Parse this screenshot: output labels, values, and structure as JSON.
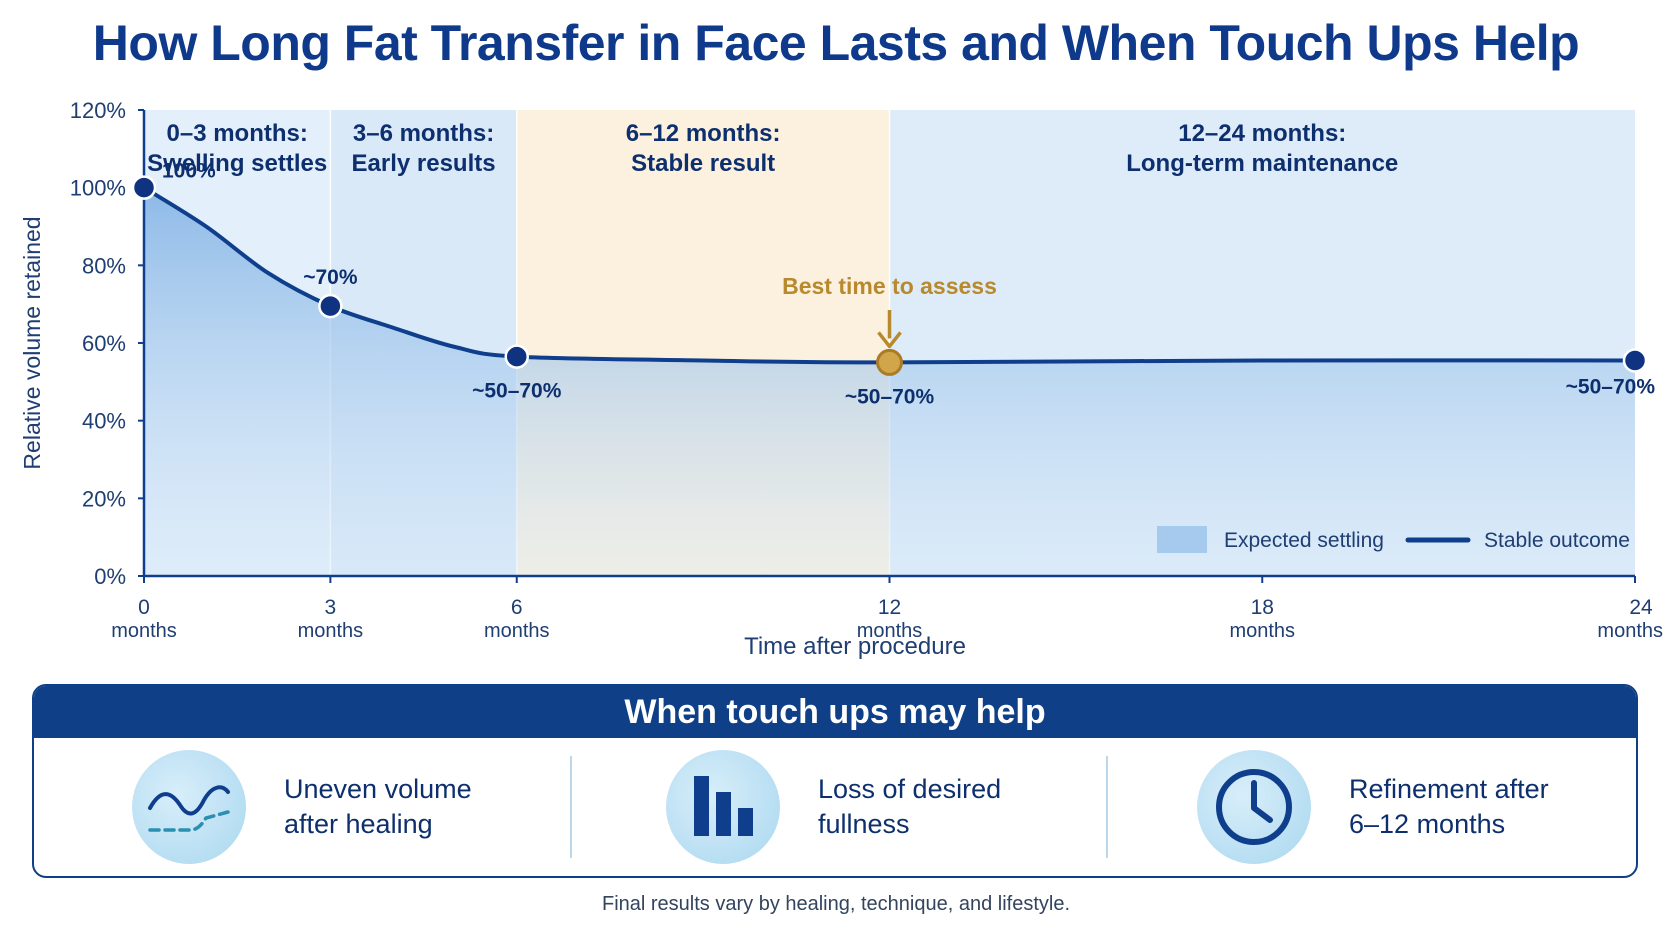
{
  "title": "How Long Fat Transfer in Face Lasts and When Touch Ups Help",
  "chart_data": {
    "type": "area",
    "ylabel": "Relative volume retained",
    "xlabel": "Time after procedure",
    "ylim": [
      0,
      120
    ],
    "xlim": [
      0,
      24
    ],
    "y_ticks": [
      {
        "value": 0,
        "label": "0%"
      },
      {
        "value": 20,
        "label": "20%"
      },
      {
        "value": 40,
        "label": "40%"
      },
      {
        "value": 60,
        "label": "60%"
      },
      {
        "value": 80,
        "label": "80%"
      },
      {
        "value": 100,
        "label": "100%"
      },
      {
        "value": 120,
        "label": "120%"
      }
    ],
    "x_ticks": [
      {
        "value": 0,
        "label": "0",
        "unit": "months"
      },
      {
        "value": 3,
        "label": "3",
        "unit": "months"
      },
      {
        "value": 6,
        "label": "6",
        "unit": "months"
      },
      {
        "value": 12,
        "label": "12",
        "unit": "months"
      },
      {
        "value": 18,
        "label": "18",
        "unit": "months"
      },
      {
        "value": 24,
        "label": "24",
        "unit": "months"
      }
    ],
    "phases": [
      {
        "start": 0,
        "end": 3,
        "line1": "0–3 months:",
        "line2": "Swelling settles",
        "color": "#e3effa"
      },
      {
        "start": 3,
        "end": 6,
        "line1": "3–6 months:",
        "line2": "Early results",
        "color": "#d9e9f8"
      },
      {
        "start": 6,
        "end": 12,
        "line1": "6–12 months:",
        "line2": "Stable result",
        "color": "#fbf1de"
      },
      {
        "start": 12,
        "end": 24,
        "line1": "12–24 months:",
        "line2": "Long-term maintenance",
        "color": "#deecf9"
      }
    ],
    "series": [
      {
        "name": "Stable outcome",
        "x": [
          0,
          1,
          2,
          3,
          4,
          5,
          6,
          9,
          12,
          18,
          24
        ],
        "y": [
          100,
          90,
          78,
          69.5,
          64,
          59,
          56.5,
          55.5,
          55,
          55.5,
          55.5
        ],
        "color": "#0f3f8c"
      }
    ],
    "markers": [
      {
        "x": 0,
        "y": 100,
        "label": "100%",
        "pos": "right-above"
      },
      {
        "x": 3,
        "y": 69.5,
        "label": "~70%",
        "pos": "above"
      },
      {
        "x": 6,
        "y": 56.5,
        "label": "~50–70%",
        "pos": "below"
      },
      {
        "x": 12,
        "y": 55,
        "label": "~50–70%",
        "pos": "below",
        "highlight": true
      },
      {
        "x": 24,
        "y": 55.5,
        "label": "~50–70%",
        "pos": "below-left"
      }
    ],
    "annotation": {
      "x": 12,
      "text": "Best time to assess",
      "color": "#b8892d"
    },
    "legend": {
      "position": "bottom-right",
      "area_label": "Expected settling",
      "line_label": "Stable outcome"
    },
    "grid": false
  },
  "touchups": {
    "heading": "When touch ups may help",
    "items": [
      {
        "icon": "wavy-line-icon",
        "label": "Uneven volume\nafter healing"
      },
      {
        "icon": "bar-chart-icon",
        "label": "Loss of desired\nfullness"
      },
      {
        "icon": "clock-icon",
        "label": "Refinement after\n6–12 months"
      }
    ]
  },
  "footnote": "Final results vary by healing, technique, and lifestyle.",
  "colors": {
    "primary": "#0f3f8c",
    "accent": "#b8892d",
    "area": "#8fbbe8"
  }
}
